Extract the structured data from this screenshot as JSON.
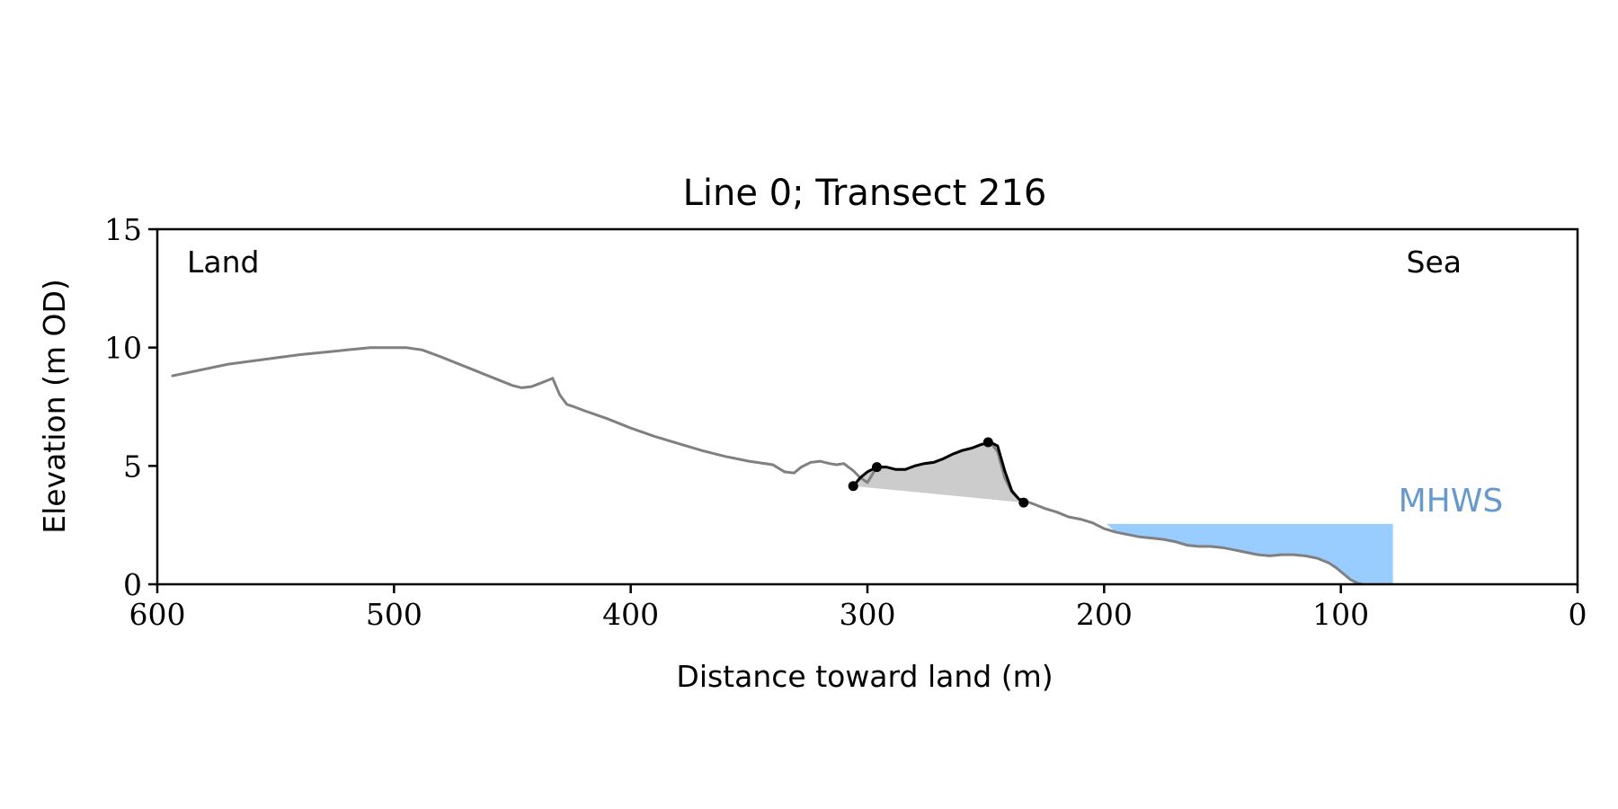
{
  "chart_data": {
    "type": "line",
    "title": "Line 0; Transect 216",
    "xlabel": "Distance toward land (m)",
    "ylabel": "Elevation (m OD)",
    "xlim": [
      600,
      0
    ],
    "ylim": [
      0,
      15
    ],
    "x_ticks": [
      600,
      500,
      400,
      300,
      200,
      100,
      0
    ],
    "y_ticks": [
      0,
      5,
      10,
      15
    ],
    "x_tick_labels": [
      "600",
      "500",
      "400",
      "300",
      "200",
      "100",
      "0"
    ],
    "y_tick_labels": [
      "0",
      "5",
      "10",
      "15"
    ],
    "grid": false,
    "annotations": {
      "left_label": "Land",
      "right_label": "Sea",
      "mhws_label": "MHWS"
    },
    "colors": {
      "profile": "#808080",
      "dune": "#000000",
      "dune_fill": "#cccccc",
      "water": "#99ccff",
      "mhws_text": "#6699cc"
    },
    "series": [
      {
        "role": "profile",
        "x": [
          594,
          570,
          540,
          510,
          495,
          488,
          480,
          470,
          460,
          450,
          446,
          442,
          438,
          433,
          430,
          427,
          424,
          420,
          410,
          400,
          390,
          380,
          370,
          360,
          350,
          340,
          335,
          331,
          328,
          324,
          320,
          316,
          313,
          310,
          306,
          303,
          300,
          296,
          292,
          288,
          284,
          280,
          276,
          272,
          268,
          264,
          260,
          256,
          252,
          248,
          245,
          242,
          239,
          236,
          233,
          230,
          225,
          220,
          215,
          210,
          205,
          200,
          195,
          190,
          185,
          180,
          175,
          170,
          165,
          160,
          155,
          150,
          145,
          140,
          135,
          130,
          125,
          120,
          115,
          110,
          105,
          102,
          99,
          96,
          93,
          91
        ],
        "y": [
          8.8,
          9.3,
          9.7,
          10.0,
          10.0,
          9.9,
          9.6,
          9.2,
          8.8,
          8.4,
          8.3,
          8.35,
          8.5,
          8.7,
          8.0,
          7.6,
          7.5,
          7.35,
          7.0,
          6.6,
          6.25,
          5.95,
          5.65,
          5.4,
          5.2,
          5.05,
          4.75,
          4.7,
          4.95,
          5.15,
          5.2,
          5.1,
          5.05,
          5.1,
          4.8,
          4.5,
          4.3,
          4.95,
          4.95,
          4.85,
          4.85,
          5.0,
          5.1,
          5.15,
          5.3,
          5.5,
          5.65,
          5.75,
          5.9,
          6.0,
          5.6,
          4.5,
          3.9,
          3.6,
          3.5,
          3.4,
          3.2,
          3.05,
          2.85,
          2.75,
          2.6,
          2.35,
          2.2,
          2.1,
          2.0,
          1.95,
          1.9,
          1.8,
          1.65,
          1.6,
          1.6,
          1.55,
          1.45,
          1.35,
          1.25,
          1.2,
          1.25,
          1.25,
          1.2,
          1.1,
          0.9,
          0.7,
          0.45,
          0.2,
          0.05,
          0.0
        ]
      },
      {
        "role": "dune",
        "x": [
          306,
          303,
          300,
          296,
          292,
          288,
          284,
          280,
          276,
          272,
          268,
          264,
          260,
          256,
          252,
          248,
          245,
          242,
          239,
          236,
          233
        ],
        "y": [
          4.15,
          4.5,
          4.75,
          4.95,
          4.95,
          4.85,
          4.85,
          5.0,
          5.1,
          5.15,
          5.3,
          5.5,
          5.65,
          5.75,
          5.9,
          6.0,
          5.85,
          4.8,
          3.95,
          3.6,
          3.5
        ]
      }
    ],
    "points": [
      {
        "x": 306,
        "y": 4.15
      },
      {
        "x": 296,
        "y": 4.95
      },
      {
        "x": 249,
        "y": 6.0
      },
      {
        "x": 234,
        "y": 3.45
      }
    ],
    "dune_base": [
      {
        "x": 306,
        "y": 4.15
      },
      {
        "x": 234,
        "y": 3.45
      }
    ],
    "mhws": {
      "level": 2.55,
      "x_start": 199,
      "x_end": 78
    }
  }
}
